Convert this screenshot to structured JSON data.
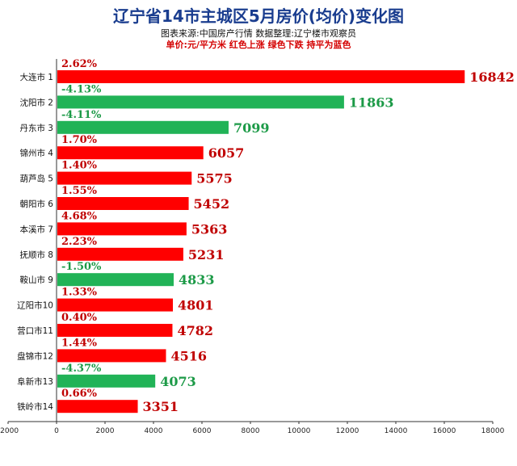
{
  "title": "辽宁省14市主城区5月房价(均价)变化图",
  "subtitle1": "图表来源:中国房产行情 数据整理:辽宁楼市观察员",
  "subtitle2": "单价:元/平方米  红色上涨 绿色下跌 持平为蓝色",
  "colors": {
    "up": "#ff0000",
    "down": "#21b357",
    "up_text": "#c00000",
    "down_text": "#1c9a47",
    "axis": "#333333"
  },
  "chart_data": {
    "type": "bar",
    "orientation": "horizontal",
    "categories": [
      "大连市 1",
      "沈阳市 2",
      "丹东市 3",
      "锦州市 4",
      "葫芦岛 5",
      "朝阳市 6",
      "本溪市 7",
      "抚顺市 8",
      "鞍山市 9",
      "辽阳市10",
      "营口市11",
      "盘锦市12",
      "阜新市13",
      "铁岭市14"
    ],
    "values": [
      16842,
      11863,
      7099,
      6057,
      5575,
      5452,
      5363,
      5231,
      4833,
      4801,
      4782,
      4516,
      4073,
      3351
    ],
    "changes": [
      "2.62%",
      "-4.13%",
      "-4.11%",
      "1.70%",
      "1.40%",
      "1.55%",
      "4.68%",
      "2.23%",
      "-1.50%",
      "1.33%",
      "0.40%",
      "1.44%",
      "-4.37%",
      "0.66%"
    ],
    "direction": [
      "up",
      "down",
      "down",
      "up",
      "up",
      "up",
      "up",
      "up",
      "down",
      "up",
      "up",
      "up",
      "down",
      "up"
    ],
    "xlim": [
      -2000,
      18000
    ],
    "xticks": [
      "-2000",
      "0",
      "2000",
      "4000",
      "6000",
      "8000",
      "10000",
      "12000",
      "14000",
      "16000",
      "18000"
    ],
    "grid": false
  }
}
